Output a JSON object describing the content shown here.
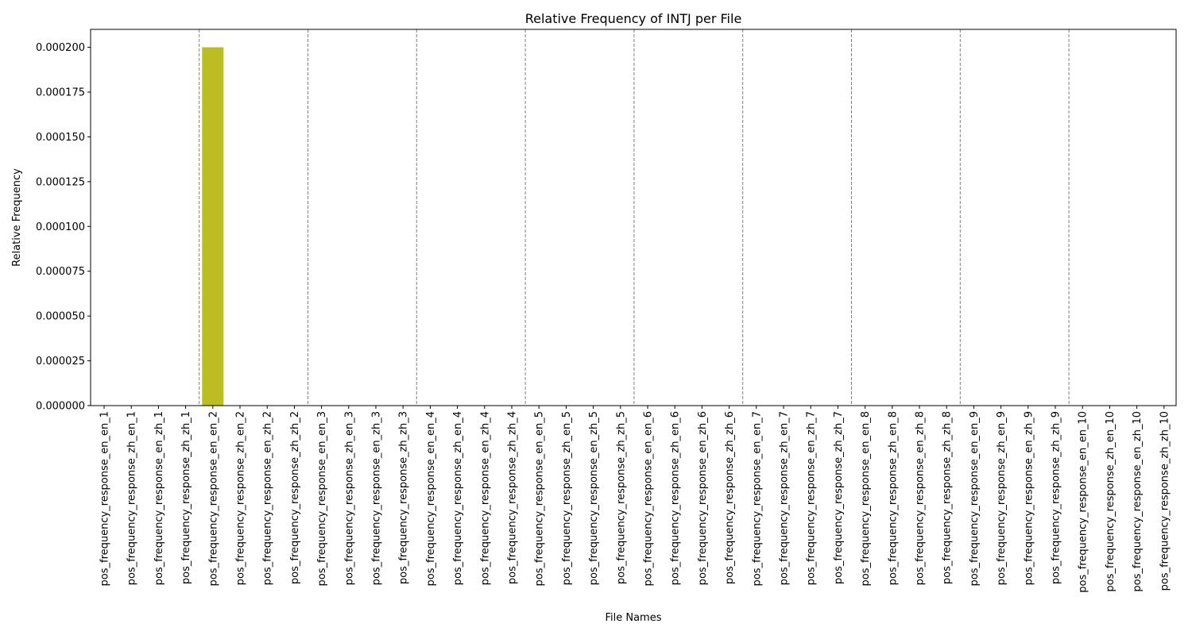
{
  "chart_data": {
    "type": "bar",
    "title": "Relative Frequency of INTJ per File",
    "xlabel": "File Names",
    "ylabel": "Relative Frequency",
    "ylim": [
      0,
      0.00021
    ],
    "yticks": [
      "0.000000",
      "0.000025",
      "0.000050",
      "0.000075",
      "0.000100",
      "0.000125",
      "0.000150",
      "0.000175",
      "0.000200"
    ],
    "ytick_values": [
      0,
      2.5e-05,
      5e-05,
      7.5e-05,
      0.0001,
      0.000125,
      0.00015,
      0.000175,
      0.0002
    ],
    "bar_color": "#bcbd22",
    "group_separator_color": "#808080",
    "group_size": 4,
    "categories": [
      "pos_frequency_response_en_en_1",
      "pos_frequency_response_zh_en_1",
      "pos_frequency_response_en_zh_1",
      "pos_frequency_response_zh_zh_1",
      "pos_frequency_response_en_en_2",
      "pos_frequency_response_zh_en_2",
      "pos_frequency_response_en_zh_2",
      "pos_frequency_response_zh_zh_2",
      "pos_frequency_response_en_en_3",
      "pos_frequency_response_zh_en_3",
      "pos_frequency_response_en_zh_3",
      "pos_frequency_response_zh_zh_3",
      "pos_frequency_response_en_en_4",
      "pos_frequency_response_zh_en_4",
      "pos_frequency_response_en_zh_4",
      "pos_frequency_response_zh_zh_4",
      "pos_frequency_response_en_en_5",
      "pos_frequency_response_zh_en_5",
      "pos_frequency_response_en_zh_5",
      "pos_frequency_response_zh_zh_5",
      "pos_frequency_response_en_en_6",
      "pos_frequency_response_zh_en_6",
      "pos_frequency_response_en_zh_6",
      "pos_frequency_response_zh_zh_6",
      "pos_frequency_response_en_en_7",
      "pos_frequency_response_zh_en_7",
      "pos_frequency_response_en_zh_7",
      "pos_frequency_response_zh_zh_7",
      "pos_frequency_response_en_en_8",
      "pos_frequency_response_zh_en_8",
      "pos_frequency_response_en_zh_8",
      "pos_frequency_response_zh_zh_8",
      "pos_frequency_response_en_en_9",
      "pos_frequency_response_zh_en_9",
      "pos_frequency_response_en_zh_9",
      "pos_frequency_response_zh_zh_9",
      "pos_frequency_response_en_en_10",
      "pos_frequency_response_zh_en_10",
      "pos_frequency_response_en_zh_10",
      "pos_frequency_response_zh_zh_10"
    ],
    "values": [
      0,
      0,
      0,
      0,
      0.0002,
      0,
      0,
      0,
      0,
      0,
      0,
      0,
      0,
      0,
      0,
      0,
      0,
      0,
      0,
      0,
      0,
      0,
      0,
      0,
      0,
      0,
      0,
      0,
      0,
      0,
      0,
      0,
      0,
      0,
      0,
      0,
      0,
      0,
      0,
      0
    ],
    "grid": false,
    "legend": "none"
  }
}
